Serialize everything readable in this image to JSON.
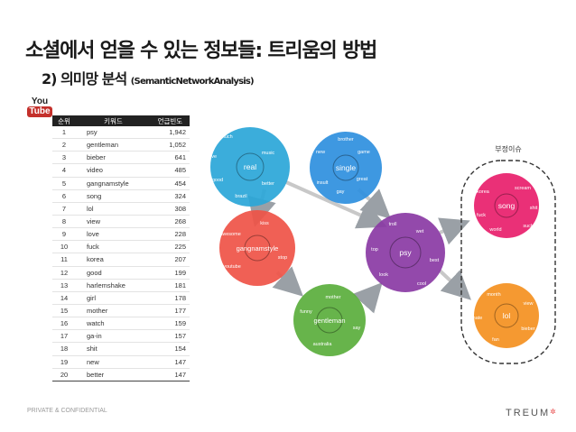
{
  "slide": {
    "title": "소셜에서 얻을 수 있는 정보들: 트리움의 방법",
    "subtitle_num": "2) 의미망 분석",
    "subtitle_en": "(SemanticNetworkAnalysis)",
    "footer": "PRIVATE & CONFIDENTIAL",
    "logo": "TREUM",
    "logo_mark": "✲"
  },
  "youtube": {
    "top": "You",
    "bottom": "Tube"
  },
  "table": {
    "headers": [
      "순위",
      "키워드",
      "언급빈도"
    ],
    "rows": [
      [
        "1",
        "psy",
        "1,942"
      ],
      [
        "2",
        "gentleman",
        "1,052"
      ],
      [
        "3",
        "bieber",
        "641"
      ],
      [
        "4",
        "video",
        "485"
      ],
      [
        "5",
        "gangnamstyle",
        "454"
      ],
      [
        "6",
        "song",
        "324"
      ],
      [
        "7",
        "lol",
        "308"
      ],
      [
        "8",
        "view",
        "268"
      ],
      [
        "9",
        "love",
        "228"
      ],
      [
        "10",
        "fuck",
        "225"
      ],
      [
        "11",
        "korea",
        "207"
      ],
      [
        "12",
        "good",
        "199"
      ],
      [
        "13",
        "harlemshake",
        "181"
      ],
      [
        "14",
        "girl",
        "178"
      ],
      [
        "15",
        "mother",
        "177"
      ],
      [
        "16",
        "watch",
        "159"
      ],
      [
        "17",
        "ga-in",
        "157"
      ],
      [
        "18",
        "shit",
        "154"
      ],
      [
        "19",
        "new",
        "147"
      ],
      [
        "20",
        "better",
        "147"
      ]
    ]
  },
  "network": {
    "group_label": "부정이슈",
    "clusters": [
      {
        "center": "real",
        "color": "#2aa6d8",
        "words": [
          "much",
          "love",
          "music",
          "good",
          "better",
          "brazil"
        ]
      },
      {
        "center": "single",
        "color": "#2e8fde",
        "words": [
          "brother",
          "new",
          "game",
          "insult",
          "great",
          "gay"
        ]
      },
      {
        "center": "gangnamstyle",
        "color": "#ef5247",
        "words": [
          "kiss",
          "awesome",
          "stop",
          "youtube"
        ]
      },
      {
        "center": "gentleman",
        "color": "#5aae3c",
        "words": [
          "mother",
          "funny",
          "say",
          "australia"
        ]
      },
      {
        "center": "psy",
        "color": "#8a3aa4",
        "words": [
          "troll",
          "wet",
          "top",
          "best",
          "look",
          "cool"
        ]
      },
      {
        "center": "song",
        "color": "#e81e6b",
        "words": [
          "korea",
          "scream",
          "shit",
          "fuck",
          "suck",
          "world"
        ]
      },
      {
        "center": "lol",
        "color": "#f4901f",
        "words": [
          "month",
          "view",
          "hate",
          "bieber",
          "fan"
        ]
      }
    ]
  }
}
